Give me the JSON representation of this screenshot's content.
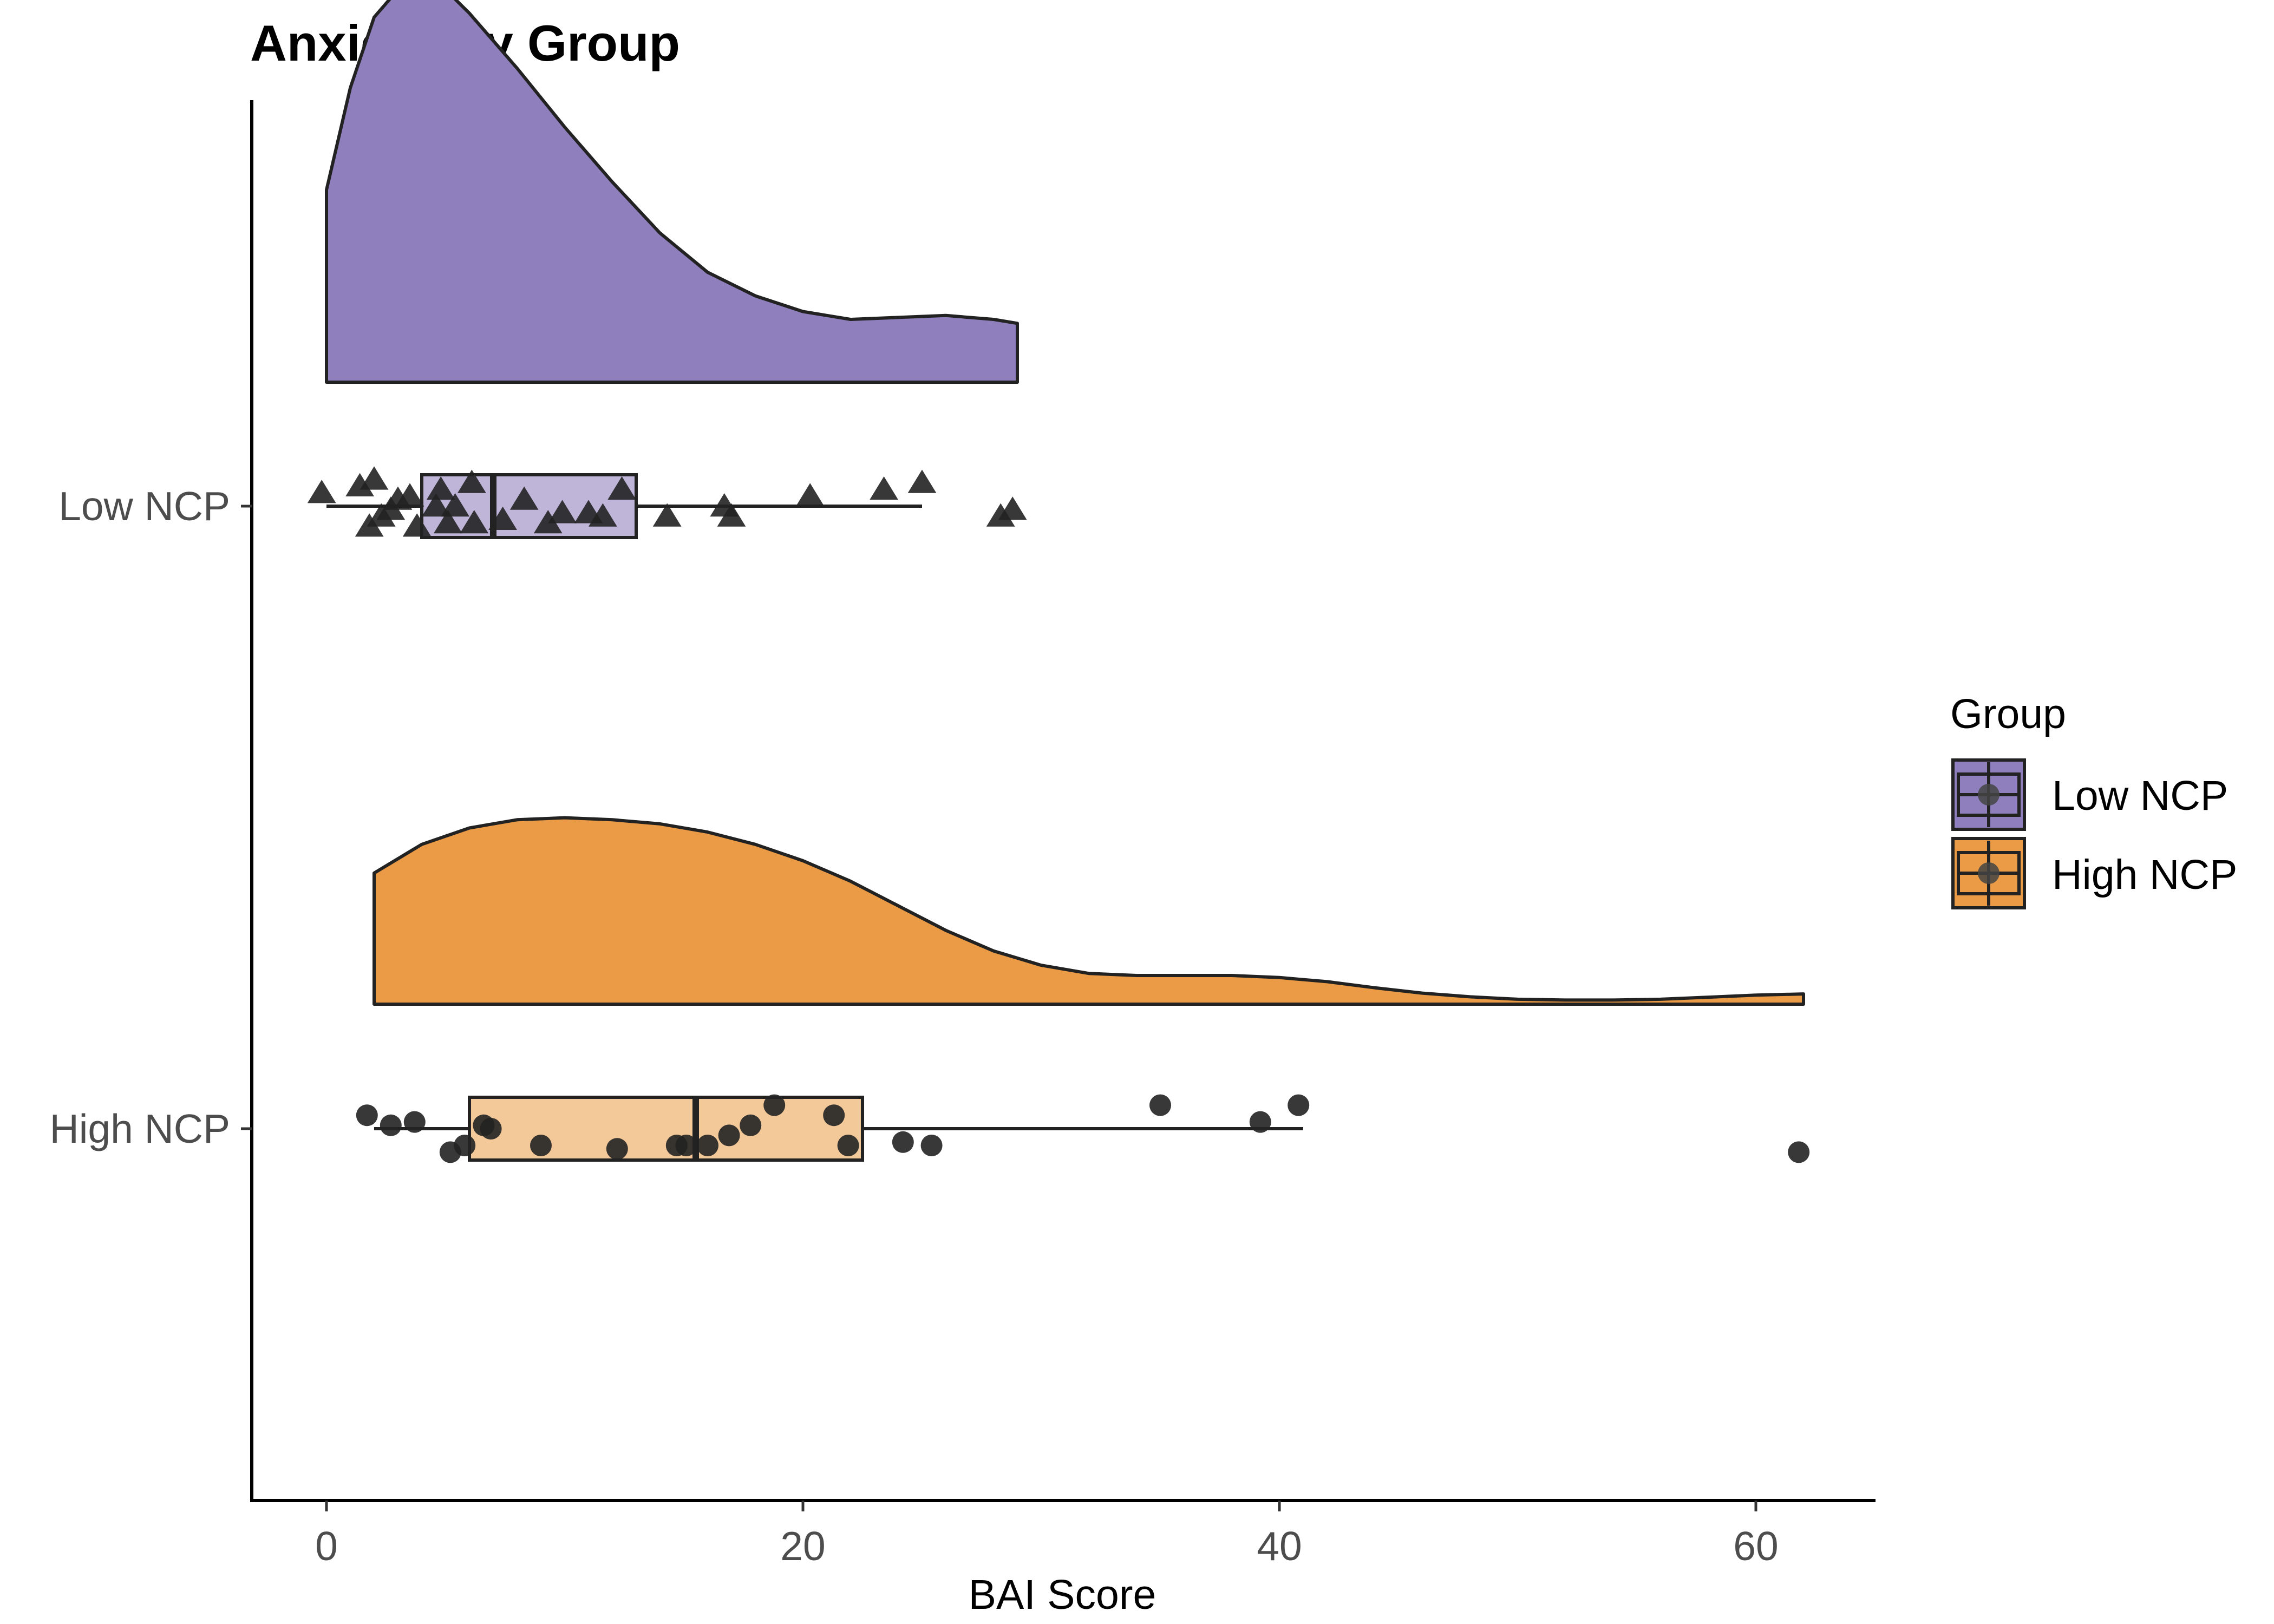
{
  "chart_data": {
    "type": "raincloud",
    "title": "Anxiety By Group",
    "xlabel": "BAI Score",
    "ylabel": "",
    "xlim": [
      -3.2,
      65
    ],
    "x_ticks": [
      0,
      20,
      40,
      60
    ],
    "y_categories": [
      "Low NCP",
      "High NCP"
    ],
    "grid": false,
    "legend": {
      "title": "Group",
      "position": "right",
      "entries": [
        "Low NCP",
        "High NCP"
      ]
    },
    "series": [
      {
        "name": "Low NCP",
        "color": "#8f7fbd",
        "box_fill": "#bfb5d9",
        "marker": "triangle",
        "box": {
          "whisker_low": 0,
          "q1": 4,
          "median": 7,
          "q3": 13,
          "whisker_high": 25
        },
        "density": [
          [
            0,
            0.49
          ],
          [
            1,
            0.75
          ],
          [
            2,
            0.93
          ],
          [
            3,
            1.0
          ],
          [
            4,
            1.02
          ],
          [
            5,
            1.0
          ],
          [
            6,
            0.94
          ],
          [
            8,
            0.8
          ],
          [
            10,
            0.65
          ],
          [
            12,
            0.51
          ],
          [
            14,
            0.38
          ],
          [
            16,
            0.28
          ],
          [
            18,
            0.22
          ],
          [
            20,
            0.18
          ],
          [
            22,
            0.16
          ],
          [
            24,
            0.165
          ],
          [
            26,
            0.17
          ],
          [
            28,
            0.16
          ],
          [
            29,
            0.15
          ]
        ],
        "points": [
          [
            -0.2,
            -0.4
          ],
          [
            1.4,
            -0.6
          ],
          [
            1.8,
            0.6
          ],
          [
            2.0,
            -0.8
          ],
          [
            2.3,
            0.3
          ],
          [
            2.7,
            0.1
          ],
          [
            3.0,
            -0.2
          ],
          [
            3.5,
            -0.3
          ],
          [
            3.8,
            0.6
          ],
          [
            4.6,
            0.0
          ],
          [
            4.8,
            -0.5
          ],
          [
            5.1,
            0.5
          ],
          [
            5.4,
            0.0
          ],
          [
            6.1,
            -0.7
          ],
          [
            6.2,
            0.5
          ],
          [
            7.4,
            0.4
          ],
          [
            8.3,
            -0.2
          ],
          [
            9.3,
            0.5
          ],
          [
            9.9,
            0.2
          ],
          [
            11.0,
            0.2
          ],
          [
            11.6,
            0.3
          ],
          [
            12.4,
            -0.5
          ],
          [
            14.3,
            0.3
          ],
          [
            16.7,
            0.0
          ],
          [
            17.0,
            0.3
          ],
          [
            20.3,
            -0.3
          ],
          [
            23.4,
            -0.5
          ],
          [
            25.0,
            -0.7
          ],
          [
            28.3,
            0.3
          ],
          [
            28.8,
            0.1
          ]
        ]
      },
      {
        "name": "High NCP",
        "color": "#eb9b46",
        "box_fill": "#f4c99a",
        "marker": "circle",
        "box": {
          "whisker_low": 2,
          "q1": 6,
          "median": 15.5,
          "q3": 22.5,
          "whisker_high": 41
        },
        "density": [
          [
            2,
            0.32
          ],
          [
            4,
            0.39
          ],
          [
            6,
            0.43
          ],
          [
            8,
            0.45
          ],
          [
            10,
            0.455
          ],
          [
            12,
            0.45
          ],
          [
            14,
            0.44
          ],
          [
            16,
            0.42
          ],
          [
            18,
            0.39
          ],
          [
            20,
            0.35
          ],
          [
            22,
            0.3
          ],
          [
            24,
            0.24
          ],
          [
            26,
            0.18
          ],
          [
            28,
            0.13
          ],
          [
            30,
            0.095
          ],
          [
            32,
            0.075
          ],
          [
            34,
            0.07
          ],
          [
            36,
            0.07
          ],
          [
            38,
            0.07
          ],
          [
            40,
            0.065
          ],
          [
            42,
            0.055
          ],
          [
            44,
            0.04
          ],
          [
            46,
            0.027
          ],
          [
            48,
            0.018
          ],
          [
            50,
            0.012
          ],
          [
            52,
            0.01
          ],
          [
            54,
            0.01
          ],
          [
            56,
            0.012
          ],
          [
            58,
            0.017
          ],
          [
            60,
            0.022
          ],
          [
            62,
            0.025
          ]
        ],
        "points": [
          [
            1.7,
            -0.4
          ],
          [
            2.7,
            -0.1
          ],
          [
            3.7,
            -0.2
          ],
          [
            5.2,
            0.7
          ],
          [
            5.8,
            0.5
          ],
          [
            6.6,
            -0.1
          ],
          [
            6.9,
            0.0
          ],
          [
            9.0,
            0.5
          ],
          [
            12.2,
            0.6
          ],
          [
            14.7,
            0.5
          ],
          [
            15.1,
            0.5
          ],
          [
            16.0,
            0.5
          ],
          [
            16.9,
            0.2
          ],
          [
            17.8,
            -0.1
          ],
          [
            18.8,
            -0.7
          ],
          [
            21.3,
            -0.4
          ],
          [
            21.9,
            0.5
          ],
          [
            24.2,
            0.4
          ],
          [
            25.4,
            0.5
          ],
          [
            35.0,
            -0.7
          ],
          [
            39.2,
            -0.2
          ],
          [
            40.8,
            -0.7
          ],
          [
            61.8,
            0.7
          ]
        ]
      }
    ]
  }
}
